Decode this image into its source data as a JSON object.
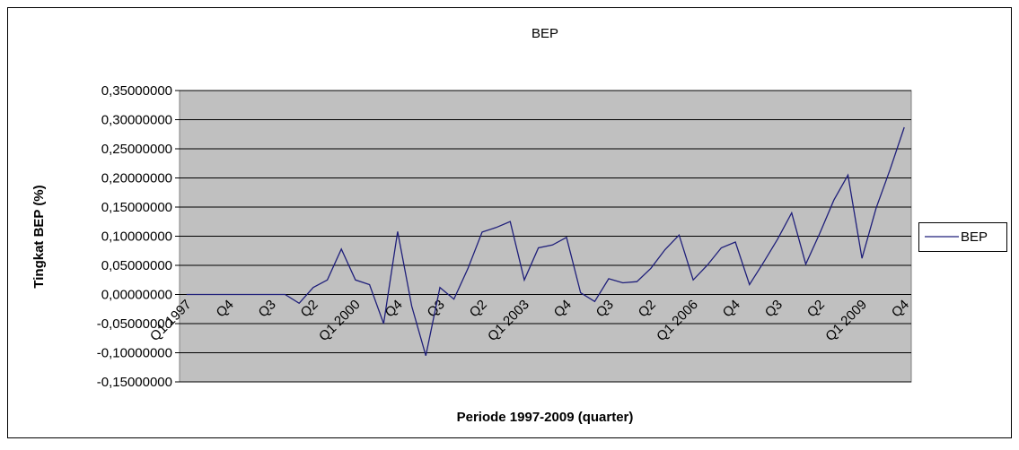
{
  "chart_data": {
    "type": "line",
    "title": "BEP",
    "x_label": "Periode 1997-2009 (quarter)",
    "y_label": "Tingkat BEP (%)",
    "categories": [
      "Q1 1997",
      null,
      null,
      "Q4",
      null,
      null,
      "Q3",
      null,
      null,
      "Q2",
      null,
      null,
      "Q1 2000",
      null,
      null,
      "Q4",
      null,
      null,
      "Q3",
      null,
      null,
      "Q2",
      null,
      null,
      "Q1 2003",
      null,
      null,
      "Q4",
      null,
      null,
      "Q3",
      null,
      null,
      "Q2",
      null,
      null,
      "Q1 2006",
      null,
      null,
      "Q4",
      null,
      null,
      "Q3",
      null,
      null,
      "Q2",
      null,
      null,
      "Q1 2009",
      null,
      null,
      "Q4"
    ],
    "series": [
      {
        "name": "BEP",
        "color": "#1f1f7a",
        "values": [
          0,
          0,
          0,
          0,
          0,
          0,
          0,
          0,
          -0.015,
          0.012,
          0.025,
          0.078,
          0.025,
          0.017,
          -0.05,
          0.108,
          -0.02,
          -0.105,
          0.012,
          -0.008,
          0.045,
          0.107,
          0.115,
          0.125,
          0.025,
          0.08,
          0.085,
          0.098,
          0.003,
          -0.012,
          0.027,
          0.02,
          0.022,
          0.045,
          0.077,
          0.102,
          0.025,
          0.05,
          0.08,
          0.09,
          0.017,
          0.055,
          0.095,
          0.14,
          0.052,
          0.105,
          0.162,
          0.205,
          0.062,
          0.148,
          0.215,
          0.287
        ]
      }
    ],
    "ylim": [
      -0.15,
      0.35
    ],
    "yticks": [
      {
        "value": -0.15,
        "label": "-0,15000000"
      },
      {
        "value": -0.1,
        "label": "-0,10000000"
      },
      {
        "value": -0.05,
        "label": "-0,05000000"
      },
      {
        "value": 0,
        "label": "0,00000000"
      },
      {
        "value": 0.05,
        "label": "0,05000000"
      },
      {
        "value": 0.1,
        "label": "0,10000000"
      },
      {
        "value": 0.15,
        "label": "0,15000000"
      },
      {
        "value": 0.2,
        "label": "0,20000000"
      },
      {
        "value": 0.25,
        "label": "0,25000000"
      },
      {
        "value": 0.3,
        "label": "0,30000000"
      },
      {
        "value": 0.35,
        "label": "0,35000000"
      }
    ],
    "grid": true,
    "legend": "right",
    "plot_background": "#c0c0c0"
  }
}
